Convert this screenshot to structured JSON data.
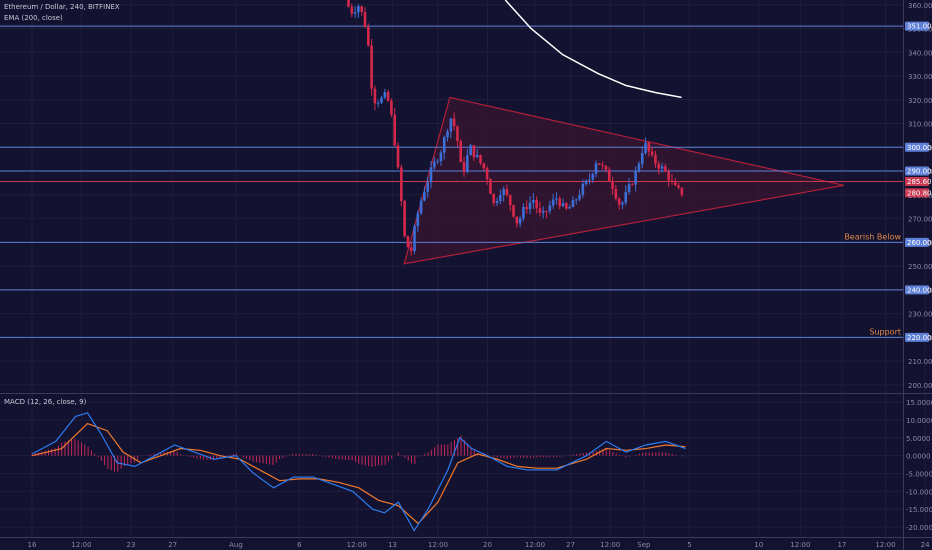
{
  "header": {
    "title": "Ethereum / Dollar, 240, BITFINEX",
    "indicator": "EMA (200, close)",
    "macd_label": "MACD (12, 26, close, 9)"
  },
  "colors": {
    "background": "#131230",
    "grid_line": "#1f1e3a",
    "h_line_blue": "#5e80d8",
    "h_line_red": "#c83a52",
    "triangle_fill": "#3a1530",
    "triangle_stroke": "#b0203a",
    "candle_up": "#3b6fd6",
    "candle_down": "#d6284a",
    "ema": "#ffffff",
    "macd_line": "#2d7cf0",
    "signal_line": "#f07a2d",
    "histogram": "#c8285a",
    "annotation_text": "#e0884a",
    "axis_text": "#8a8aa8"
  },
  "chart_data": [
    {
      "type": "candlestick",
      "title": "Ethereum / Dollar, 240, BITFINEX",
      "overlay": "EMA (200, close)",
      "ylim": [
        197,
        362
      ],
      "y_ticks": [
        360,
        350,
        340,
        330,
        320,
        310,
        300,
        290,
        280,
        270,
        260,
        250,
        240,
        230,
        220,
        210,
        200
      ],
      "x_ticks": [
        {
          "label": "16",
          "day": 0
        },
        {
          "label": "12:00",
          "day": 2.5
        },
        {
          "label": "23",
          "day": 5
        },
        {
          "label": "27",
          "day": 7.1
        },
        {
          "label": "Aug",
          "day": 10.3
        },
        {
          "label": "6",
          "day": 13.5
        },
        {
          "label": "12:00",
          "day": 16.4
        },
        {
          "label": "13",
          "day": 18.2
        },
        {
          "label": "12:00",
          "day": 20.5
        },
        {
          "label": "20",
          "day": 23
        },
        {
          "label": "12:00",
          "day": 25.4
        },
        {
          "label": "27",
          "day": 27.2
        },
        {
          "label": "12:00",
          "day": 29.2
        },
        {
          "label": "Sep",
          "day": 30.9
        },
        {
          "label": "5",
          "day": 33.2
        },
        {
          "label": "10",
          "day": 36.7
        },
        {
          "label": "12:00",
          "day": 38.8
        },
        {
          "label": "17",
          "day": 40.9
        },
        {
          "label": "12:00",
          "day": 43.1
        },
        {
          "label": "24",
          "day": 45.1
        }
      ],
      "price_labels": [
        {
          "value": 351,
          "label": "351.00",
          "color": "blue"
        },
        {
          "value": 300,
          "label": "300.00",
          "color": "blue"
        },
        {
          "value": 290,
          "label": "290.00",
          "color": "blue"
        },
        {
          "value": 285.6,
          "label": "285.60",
          "color": "red"
        },
        {
          "value": 280.8,
          "label": "280.80",
          "color": "red"
        },
        {
          "value": 260,
          "label": "260.00",
          "color": "blue"
        },
        {
          "value": 240,
          "label": "240.00",
          "color": "blue"
        },
        {
          "value": 220,
          "label": "220.00",
          "color": "blue"
        }
      ],
      "horizontal_lines": [
        {
          "value": 351,
          "color": "blue"
        },
        {
          "value": 300,
          "color": "blue"
        },
        {
          "value": 290,
          "color": "blue"
        },
        {
          "value": 285.6,
          "color": "red"
        },
        {
          "value": 260,
          "color": "blue"
        },
        {
          "value": 240,
          "color": "blue"
        },
        {
          "value": 220,
          "color": "blue"
        }
      ],
      "annotations": [
        {
          "text": "Bearish Below",
          "value": 260
        },
        {
          "text": "Support",
          "value": 220
        }
      ],
      "triangle": [
        {
          "day": 18.8,
          "value": 251
        },
        {
          "day": 21.1,
          "value": 321
        },
        {
          "day": 41.0,
          "value": 284
        }
      ],
      "price_path": [
        {
          "day": 15.9,
          "value": 362
        },
        {
          "day": 16.2,
          "value": 357
        },
        {
          "day": 16.6,
          "value": 360
        },
        {
          "day": 17.0,
          "value": 349
        },
        {
          "day": 17.3,
          "value": 320
        },
        {
          "day": 17.7,
          "value": 320
        },
        {
          "day": 18.0,
          "value": 322
        },
        {
          "day": 18.3,
          "value": 310
        },
        {
          "day": 18.7,
          "value": 280
        },
        {
          "day": 18.9,
          "value": 262
        },
        {
          "day": 19.2,
          "value": 255
        },
        {
          "day": 19.5,
          "value": 270
        },
        {
          "day": 19.8,
          "value": 280
        },
        {
          "day": 20.1,
          "value": 287
        },
        {
          "day": 20.5,
          "value": 295
        },
        {
          "day": 20.8,
          "value": 300
        },
        {
          "day": 21.2,
          "value": 313
        },
        {
          "day": 21.5,
          "value": 307
        },
        {
          "day": 21.8,
          "value": 288
        },
        {
          "day": 22.2,
          "value": 300
        },
        {
          "day": 22.6,
          "value": 295
        },
        {
          "day": 23.0,
          "value": 290
        },
        {
          "day": 23.4,
          "value": 276
        },
        {
          "day": 23.8,
          "value": 283
        },
        {
          "day": 24.2,
          "value": 277
        },
        {
          "day": 24.6,
          "value": 268
        },
        {
          "day": 25.0,
          "value": 275
        },
        {
          "day": 25.4,
          "value": 278
        },
        {
          "day": 25.8,
          "value": 270
        },
        {
          "day": 26.2,
          "value": 275
        },
        {
          "day": 26.6,
          "value": 279
        },
        {
          "day": 27.0,
          "value": 273
        },
        {
          "day": 27.4,
          "value": 276
        },
        {
          "day": 27.8,
          "value": 282
        },
        {
          "day": 28.2,
          "value": 286
        },
        {
          "day": 28.6,
          "value": 295
        },
        {
          "day": 29.0,
          "value": 290
        },
        {
          "day": 29.4,
          "value": 284
        },
        {
          "day": 29.8,
          "value": 275
        },
        {
          "day": 30.2,
          "value": 282
        },
        {
          "day": 30.6,
          "value": 290
        },
        {
          "day": 31.0,
          "value": 302
        },
        {
          "day": 31.4,
          "value": 295
        },
        {
          "day": 31.8,
          "value": 292
        },
        {
          "day": 32.2,
          "value": 288
        },
        {
          "day": 32.5,
          "value": 283
        },
        {
          "day": 32.8,
          "value": 281
        }
      ],
      "ema_line": [
        {
          "day": 23.9,
          "value": 362
        },
        {
          "day": 25.2,
          "value": 350
        },
        {
          "day": 26.8,
          "value": 339
        },
        {
          "day": 28.6,
          "value": 331
        },
        {
          "day": 30.0,
          "value": 326
        },
        {
          "day": 31.5,
          "value": 323
        },
        {
          "day": 32.8,
          "value": 321
        }
      ]
    },
    {
      "type": "line",
      "title": "MACD (12, 26, close, 9)",
      "ylim": [
        -22.5,
        17
      ],
      "y_ticks": [
        15,
        10,
        5,
        0,
        -5,
        -10,
        -15,
        -20
      ],
      "y_tick_labels": [
        "15.0000",
        "10.0000",
        "5.0000",
        "0.0000",
        "-5.0000",
        "-10.0000",
        "-15.0000",
        "-20.0000"
      ],
      "series": [
        {
          "key": "macd",
          "points": [
            {
              "day": 0,
              "value": 0.5
            },
            {
              "day": 1.2,
              "value": 4
            },
            {
              "day": 2.2,
              "value": 11
            },
            {
              "day": 2.8,
              "value": 12
            },
            {
              "day": 3.5,
              "value": 6
            },
            {
              "day": 4.3,
              "value": -2
            },
            {
              "day": 5.2,
              "value": -3
            },
            {
              "day": 6.2,
              "value": 0
            },
            {
              "day": 7.2,
              "value": 3
            },
            {
              "day": 8.2,
              "value": 1
            },
            {
              "day": 9.2,
              "value": -1
            },
            {
              "day": 10.3,
              "value": 0
            },
            {
              "day": 11.2,
              "value": -5
            },
            {
              "day": 12.2,
              "value": -9
            },
            {
              "day": 13.2,
              "value": -6
            },
            {
              "day": 14.2,
              "value": -6
            },
            {
              "day": 15.2,
              "value": -8
            },
            {
              "day": 16.2,
              "value": -10
            },
            {
              "day": 17.2,
              "value": -15
            },
            {
              "day": 17.8,
              "value": -16
            },
            {
              "day": 18.5,
              "value": -13
            },
            {
              "day": 19.3,
              "value": -21
            },
            {
              "day": 20.0,
              "value": -15
            },
            {
              "day": 21.0,
              "value": -4
            },
            {
              "day": 21.6,
              "value": 5
            },
            {
              "day": 22.2,
              "value": 2
            },
            {
              "day": 23.0,
              "value": 0
            },
            {
              "day": 24.0,
              "value": -3
            },
            {
              "day": 25.0,
              "value": -4
            },
            {
              "day": 26.5,
              "value": -4
            },
            {
              "day": 28.0,
              "value": 0
            },
            {
              "day": 29.0,
              "value": 4
            },
            {
              "day": 30.0,
              "value": 1
            },
            {
              "day": 31.0,
              "value": 3
            },
            {
              "day": 32.0,
              "value": 4
            },
            {
              "day": 33.0,
              "value": 2
            }
          ]
        },
        {
          "key": "signal",
          "points": [
            {
              "day": 0,
              "value": 0
            },
            {
              "day": 1.5,
              "value": 2
            },
            {
              "day": 2.8,
              "value": 9
            },
            {
              "day": 3.8,
              "value": 7
            },
            {
              "day": 4.6,
              "value": 1
            },
            {
              "day": 5.5,
              "value": -2
            },
            {
              "day": 6.5,
              "value": 0
            },
            {
              "day": 7.5,
              "value": 2
            },
            {
              "day": 8.5,
              "value": 1.5
            },
            {
              "day": 9.5,
              "value": 0
            },
            {
              "day": 10.5,
              "value": -1
            },
            {
              "day": 11.5,
              "value": -4
            },
            {
              "day": 12.5,
              "value": -7
            },
            {
              "day": 13.5,
              "value": -6.5
            },
            {
              "day": 14.5,
              "value": -6.5
            },
            {
              "day": 15.5,
              "value": -7.5
            },
            {
              "day": 16.5,
              "value": -9
            },
            {
              "day": 17.5,
              "value": -12.5
            },
            {
              "day": 18.5,
              "value": -14
            },
            {
              "day": 19.5,
              "value": -19
            },
            {
              "day": 20.5,
              "value": -13
            },
            {
              "day": 21.5,
              "value": -2
            },
            {
              "day": 22.5,
              "value": 0.5
            },
            {
              "day": 23.5,
              "value": -1
            },
            {
              "day": 24.5,
              "value": -3
            },
            {
              "day": 25.5,
              "value": -3.5
            },
            {
              "day": 26.5,
              "value": -3.5
            },
            {
              "day": 28.0,
              "value": -1
            },
            {
              "day": 29.0,
              "value": 2
            },
            {
              "day": 30.0,
              "value": 1.5
            },
            {
              "day": 31.0,
              "value": 2
            },
            {
              "day": 32.0,
              "value": 3
            },
            {
              "day": 33.0,
              "value": 2.5
            }
          ]
        }
      ]
    }
  ]
}
